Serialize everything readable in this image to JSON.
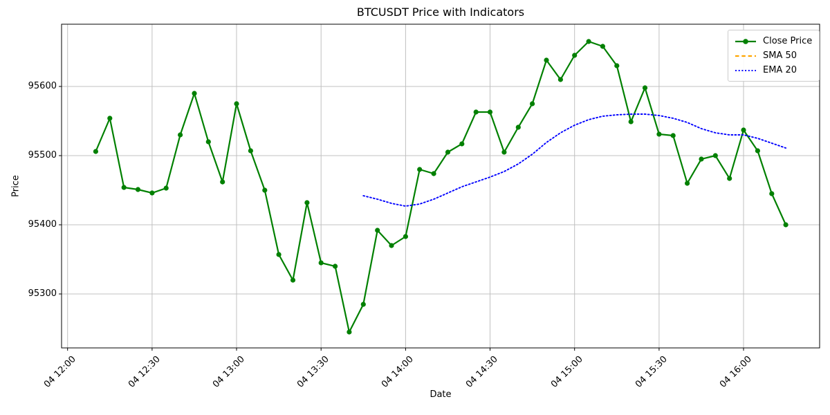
{
  "figure": {
    "background": "#ffffff"
  },
  "chart_data": {
    "type": "line",
    "title": "BTCUSDT Price with Indicators",
    "xlabel": "Date",
    "ylabel": "Price",
    "grid": true,
    "legend_position": "upper right",
    "x_tick_labels": [
      "04 12:00",
      "04 12:30",
      "04 13:00",
      "04 13:30",
      "04 14:00",
      "04 14:30",
      "04 15:00",
      "04 15:30",
      "04 16:00"
    ],
    "y_ticks": [
      95300,
      95400,
      95500,
      95600
    ],
    "y_tick_labels": [
      "95300",
      "95400",
      "95500",
      "95600"
    ],
    "ylim": [
      95222,
      95690
    ],
    "categories": [
      "04 12:10",
      "04 12:15",
      "04 12:20",
      "04 12:25",
      "04 12:30",
      "04 12:35",
      "04 12:40",
      "04 12:45",
      "04 12:50",
      "04 12:55",
      "04 13:00",
      "04 13:05",
      "04 13:10",
      "04 13:15",
      "04 13:20",
      "04 13:25",
      "04 13:30",
      "04 13:35",
      "04 13:40",
      "04 13:45",
      "04 13:50",
      "04 13:55",
      "04 14:00",
      "04 14:05",
      "04 14:10",
      "04 14:15",
      "04 14:20",
      "04 14:25",
      "04 14:30",
      "04 14:35",
      "04 14:40",
      "04 14:45",
      "04 14:50",
      "04 14:55",
      "04 15:00",
      "04 15:05",
      "04 15:10",
      "04 15:15",
      "04 15:20",
      "04 15:25",
      "04 15:30",
      "04 15:35",
      "04 15:40",
      "04 15:45",
      "04 15:50",
      "04 15:55",
      "04 16:00",
      "04 16:05",
      "04 16:10",
      "04 16:15"
    ],
    "series": [
      {
        "name": "Close Price",
        "color": "#008000",
        "line_style": "solid",
        "marker": "circle",
        "values": [
          95506,
          95554,
          95454,
          95451,
          95446,
          95453,
          95530,
          95590,
          95520,
          95462,
          95575,
          95507,
          95450,
          95357,
          95320,
          95432,
          95345,
          95340,
          95245,
          95285,
          95392,
          95370,
          95383,
          95480,
          95474,
          95505,
          95517,
          95563,
          95563,
          95505,
          95541,
          95575,
          95638,
          95610,
          95645,
          95665,
          95658,
          95630,
          95549,
          95598,
          95531,
          95529,
          95460,
          95495,
          95500,
          95467,
          95537,
          95507,
          95445,
          95400
        ]
      },
      {
        "name": "SMA 50",
        "color": "#FFA500",
        "line_style": "dashed",
        "marker": "none",
        "values": []
      },
      {
        "name": "EMA 20",
        "color": "#0000FF",
        "line_style": "dotted",
        "marker": "none",
        "values": [
          null,
          null,
          null,
          null,
          null,
          null,
          null,
          null,
          null,
          null,
          null,
          null,
          null,
          null,
          null,
          null,
          null,
          null,
          null,
          95442,
          95437,
          95431,
          95427,
          95430,
          95437,
          95446,
          95455,
          95462,
          95469,
          95477,
          95488,
          95502,
          95519,
          95533,
          95544,
          95552,
          95557,
          95559,
          95560,
          95560,
          95558,
          95554,
          95548,
          95539,
          95533,
          95530,
          95530,
          95525,
          95518,
          95511
        ]
      }
    ]
  }
}
